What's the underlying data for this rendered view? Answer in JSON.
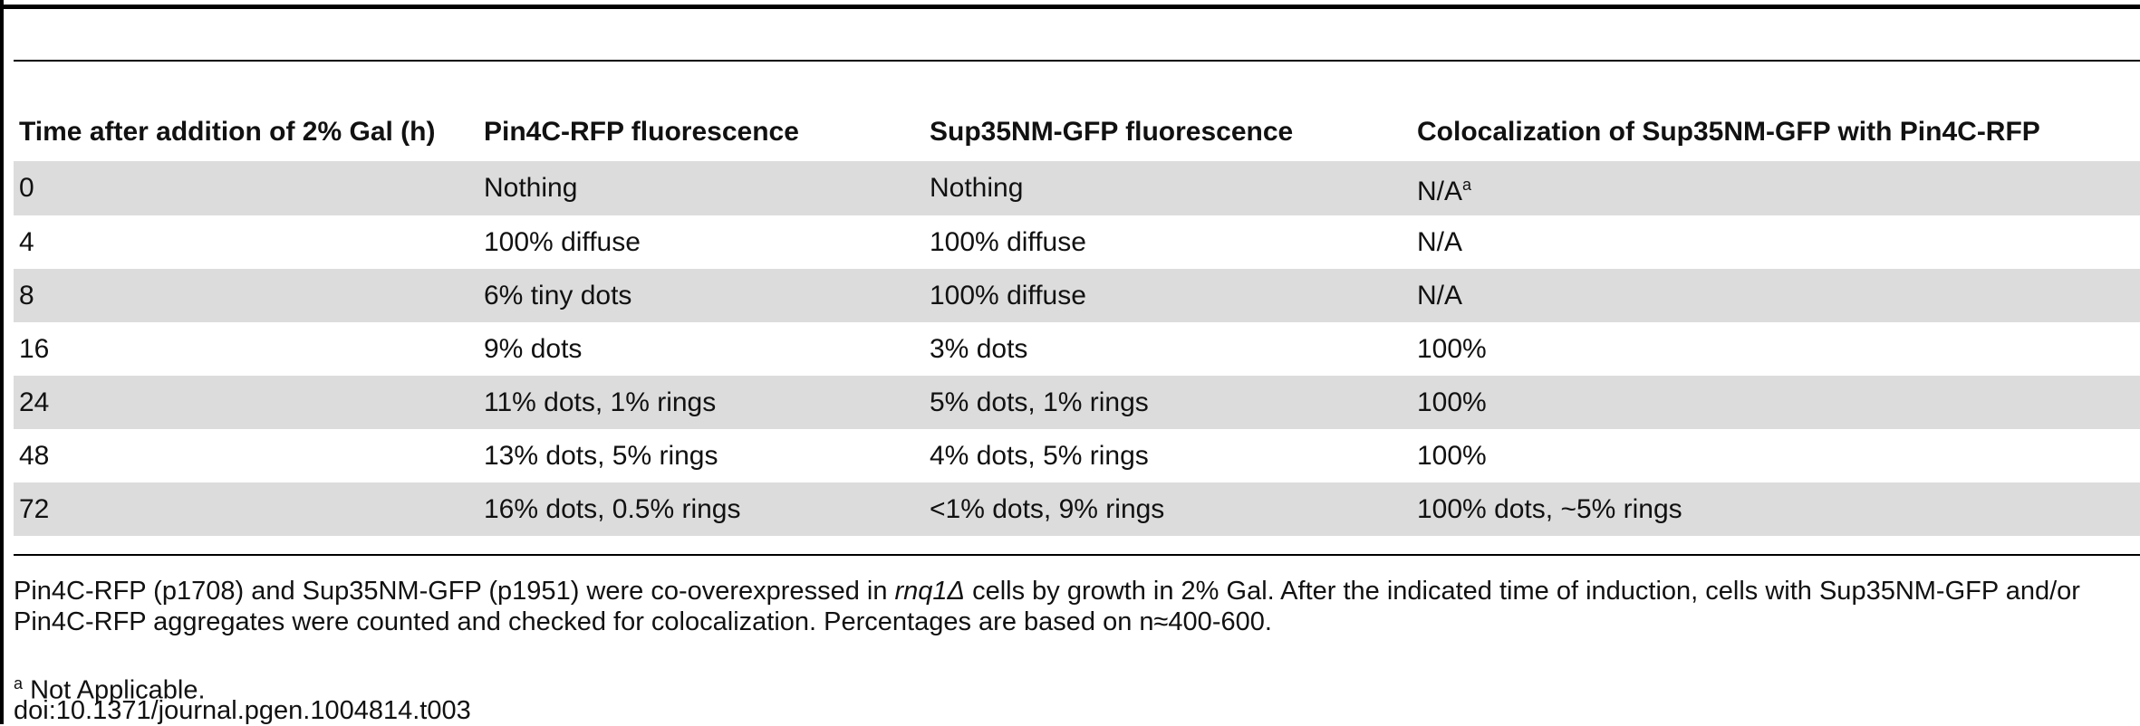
{
  "table": {
    "headers": [
      "Time after addition of 2% Gal (h)",
      "Pin4C-RFP fluorescence",
      "Sup35NM-GFP fluorescence",
      "Colocalization of Sup35NM-GFP with Pin4C-RFP"
    ],
    "rows": [
      [
        "0",
        "Nothing",
        "Nothing",
        "N/A"
      ],
      [
        "4",
        "100% diffuse",
        "100% diffuse",
        "N/A"
      ],
      [
        "8",
        "6% tiny dots",
        "100% diffuse",
        "N/A"
      ],
      [
        "16",
        "9% dots",
        "3% dots",
        "100%"
      ],
      [
        "24",
        "11% dots, 1% rings",
        "5% dots, 1% rings",
        "100%"
      ],
      [
        "48",
        "13% dots, 5% rings",
        "4% dots, 5% rings",
        "100%"
      ],
      [
        "72",
        "16% dots, 0.5% rings",
        "<1% dots, 9% rings",
        "100% dots, ~5% rings"
      ]
    ],
    "first_row_sup": "a"
  },
  "footnote": {
    "part1": "Pin4C-RFP (p1708) and Sup35NM-GFP (p1951) were co-overexpressed in ",
    "gene": "rnq1Δ",
    "part2": " cells by growth in 2% Gal. After the indicated time of induction, cells with Sup35NM-GFP and/or Pin4C-RFP aggregates were counted and checked for colocalization. Percentages are based on n≈400-600.",
    "note_marker": "a",
    "note_text": " Not Applicable.",
    "doi": "doi:10.1371/journal.pgen.1004814.t003"
  },
  "colors": {
    "shade": "#dcdcdc",
    "rule": "#000000"
  }
}
